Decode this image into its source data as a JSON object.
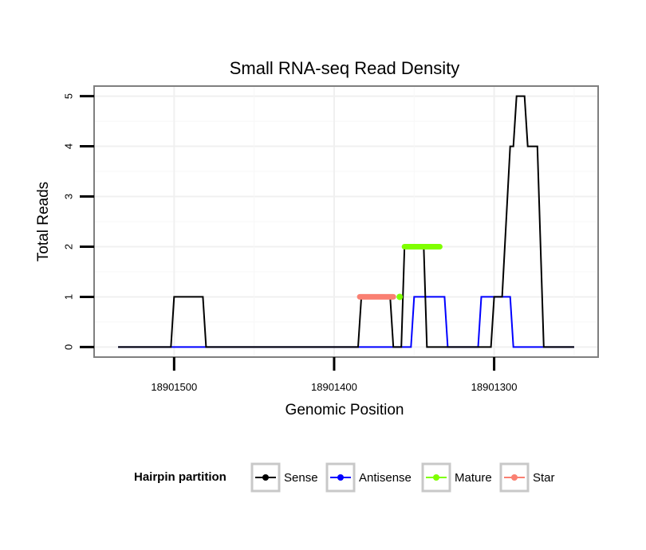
{
  "chart_data": {
    "type": "line",
    "title": "Small RNA-seq Read Density",
    "xlabel": "Genomic Position",
    "ylabel": "Total Reads",
    "x_reversed": true,
    "xlim": [
      18901550,
      18901235
    ],
    "ylim": [
      -0.2,
      5.2
    ],
    "xticks": [
      {
        "value": 18901500,
        "label": "18901500"
      },
      {
        "value": 18901400,
        "label": "18901400"
      },
      {
        "value": 18901300,
        "label": "18901300"
      }
    ],
    "yticks": [
      {
        "value": 0,
        "label": "0"
      },
      {
        "value": 1,
        "label": "1"
      },
      {
        "value": 2,
        "label": "2"
      },
      {
        "value": 3,
        "label": "3"
      },
      {
        "value": 4,
        "label": "4"
      },
      {
        "value": 5,
        "label": "5"
      }
    ],
    "grid": true,
    "legend": {
      "title": "Hairpin partition",
      "position": "bottom",
      "entries": [
        "Sense",
        "Antisense",
        "Mature",
        "Star"
      ]
    },
    "series": [
      {
        "name": "Sense",
        "color": "#000000",
        "style": "line",
        "x": [
          18901535,
          18901502,
          18901500,
          18901482,
          18901480,
          18901385,
          18901383,
          18901365,
          18901363,
          18901358,
          18901356,
          18901344,
          18901342,
          18901323,
          18901321,
          18901302,
          18901300,
          18901295,
          18901290,
          18901288,
          18901286,
          18901281,
          18901279,
          18901273,
          18901271,
          18901269,
          18901267,
          18901250
        ],
        "y": [
          0,
          0,
          1,
          1,
          0,
          0,
          1,
          1,
          0,
          0,
          2,
          2,
          0,
          0,
          0,
          0,
          1,
          1,
          4,
          4,
          5,
          5,
          4,
          4,
          2,
          0,
          0,
          0
        ]
      },
      {
        "name": "Antisense",
        "color": "#0000ff",
        "style": "line",
        "x": [
          18901535,
          18901352,
          18901350,
          18901331,
          18901329,
          18901310,
          18901308,
          18901290,
          18901288,
          18901250
        ],
        "y": [
          0,
          0,
          1,
          1,
          0,
          0,
          1,
          1,
          0,
          0
        ]
      },
      {
        "name": "Mature",
        "color": "#7fff00",
        "style": "thick",
        "x": [
          18901356,
          18901334
        ],
        "y": [
          2,
          2
        ],
        "points": [
          {
            "x": 18901359,
            "y": 1
          }
        ]
      },
      {
        "name": "Star",
        "color": "#fa8072",
        "style": "thick",
        "x": [
          18901384,
          18901363
        ],
        "y": [
          1,
          1
        ]
      }
    ]
  }
}
